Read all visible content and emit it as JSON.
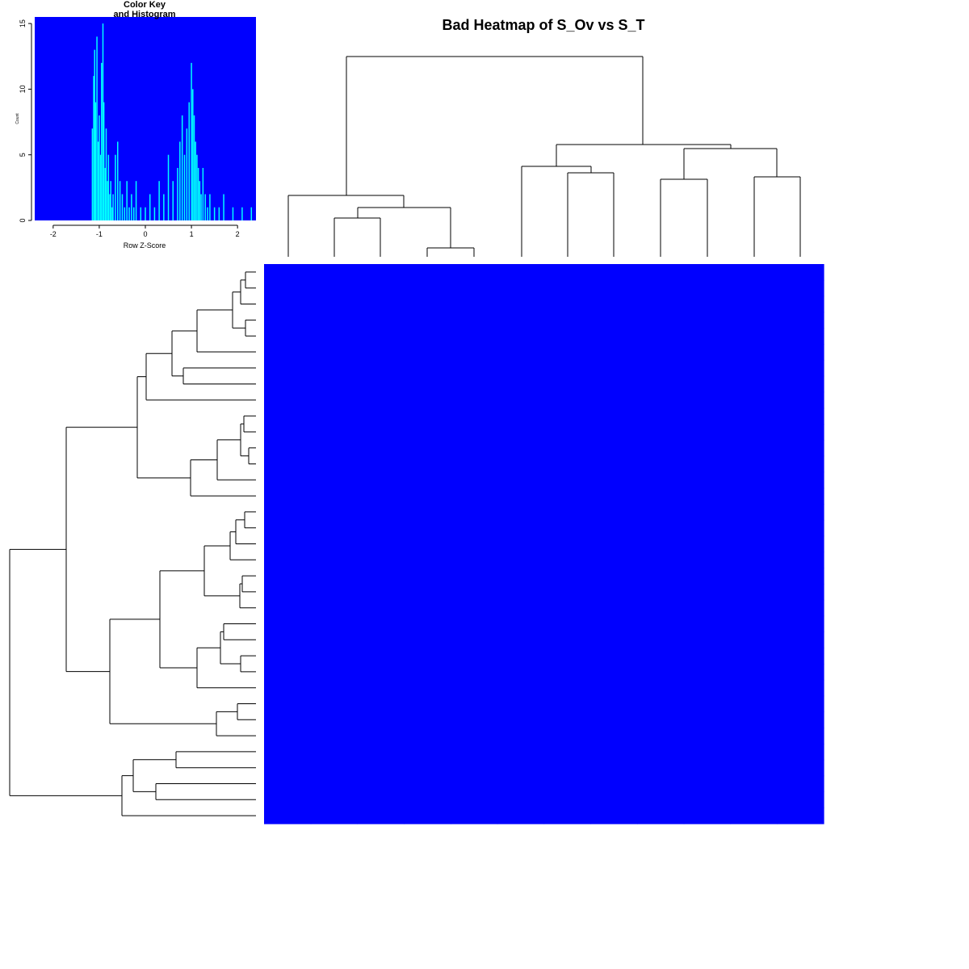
{
  "title": "Bad Heatmap of S_Ov vs S_T",
  "colors": {
    "heatmap_fill": "#0000ff",
    "key_background": "#0000ff",
    "histogram_line": "#00ffff",
    "dendrogram_line": "#000000"
  },
  "color_key": {
    "title_line1": "Color Key",
    "title_line2": "and Histogram",
    "xlabel": "Row Z-Score",
    "ylabel": "Count",
    "x_ticks": [
      "-2",
      "-1",
      "0",
      "1",
      "2"
    ],
    "y_ticks": [
      "0",
      "5",
      "10",
      "15"
    ]
  },
  "chart_data": [
    {
      "type": "heatmap",
      "title": "Bad Heatmap of S_Ov vs S_T",
      "n_rows": 35,
      "n_cols": 12,
      "cell_color": "#0000ff",
      "row_labels": [],
      "col_labels": [],
      "column_dendrogram": true,
      "row_dendrogram": true
    },
    {
      "type": "histogram",
      "title": "Color Key and Histogram",
      "xlabel": "Row Z-Score",
      "ylabel": "Count",
      "xlim": [
        -2.4,
        2.4
      ],
      "ylim": [
        0,
        15.5
      ],
      "x_values": [
        -1.15,
        -1.12,
        -1.1,
        -1.08,
        -1.05,
        -1.02,
        -1.0,
        -0.97,
        -0.95,
        -0.92,
        -0.9,
        -0.87,
        -0.85,
        -0.82,
        -0.8,
        -0.77,
        -0.75,
        -0.72,
        -0.7,
        -0.65,
        -0.6,
        -0.55,
        -0.5,
        -0.45,
        -0.4,
        -0.35,
        -0.3,
        -0.25,
        -0.2,
        -0.1,
        0.0,
        0.1,
        0.2,
        0.3,
        0.4,
        0.5,
        0.6,
        0.7,
        0.75,
        0.8,
        0.85,
        0.9,
        0.95,
        1.0,
        1.03,
        1.06,
        1.09,
        1.12,
        1.15,
        1.18,
        1.21,
        1.25,
        1.3,
        1.35,
        1.4,
        1.5,
        1.6,
        1.7,
        1.9,
        2.1,
        2.3
      ],
      "counts": [
        7,
        11,
        13,
        9,
        14,
        6,
        8,
        5,
        12,
        15,
        9,
        4,
        7,
        3,
        5,
        2,
        3,
        1,
        2,
        5,
        6,
        3,
        2,
        1,
        3,
        1,
        2,
        1,
        3,
        1,
        1,
        2,
        1,
        3,
        2,
        5,
        3,
        4,
        6,
        8,
        5,
        7,
        9,
        12,
        10,
        8,
        6,
        5,
        4,
        3,
        2,
        4,
        2,
        1,
        2,
        1,
        1,
        2,
        1,
        1,
        1
      ]
    }
  ]
}
